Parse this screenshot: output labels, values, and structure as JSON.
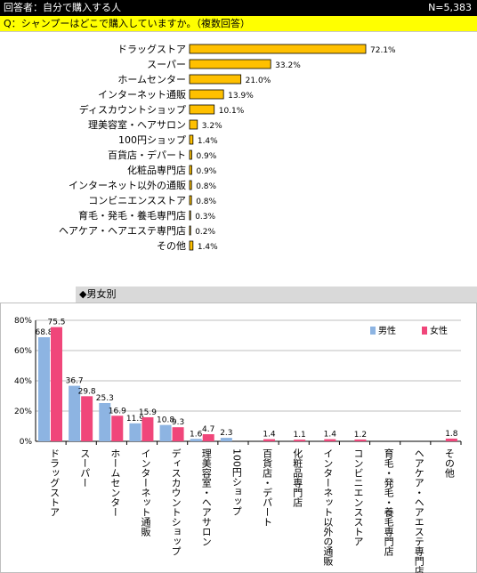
{
  "header": {
    "respondent_label": "回答者：自分で購入する人",
    "sample_size": "N=5,383"
  },
  "question": "Q：シャンプーはどこで購入していますか。（複数回答）",
  "section_title": "◆男女別",
  "colors": {
    "overall_bar": "#ffc000",
    "male": "#8db4e2",
    "female": "#f0467a"
  },
  "chart_data": [
    {
      "type": "bar",
      "orientation": "horizontal",
      "categories": [
        "ドラッグストア",
        "スーパー",
        "ホームセンター",
        "インターネット通販",
        "ディスカウントショップ",
        "理美容室・ヘアサロン",
        "100円ショップ",
        "百貨店・デパート",
        "化粧品専門店",
        "インターネット以外の通販",
        "コンビニエンスストア",
        "育毛・発毛・養毛専門店",
        "ヘアケア・ヘアエステ専門店",
        "その他"
      ],
      "values": [
        72.1,
        33.2,
        21.0,
        13.9,
        10.1,
        3.2,
        1.4,
        0.9,
        0.9,
        0.8,
        0.8,
        0.3,
        0.2,
        1.4
      ],
      "labels": [
        "72.1%",
        "33.2%",
        "21.0%",
        "13.9%",
        "10.1%",
        "3.2%",
        "1.4%",
        "0.9%",
        "0.9%",
        "0.8%",
        "0.8%",
        "0.3%",
        "0.2%",
        "1.4%"
      ],
      "xlim": [
        0,
        100
      ]
    },
    {
      "type": "bar",
      "orientation": "vertical",
      "categories": [
        "ドラッグストア",
        "スーパー",
        "ホームセンター",
        "インターネット通販",
        "ディスカウントショップ",
        "理美容室・ヘアサロン",
        "100円ショップ",
        "百貨店・デパート",
        "化粧品専門店",
        "インターネット以外の通販",
        "コンビニエンスストア",
        "育毛・発毛・養毛専門店",
        "ヘアケア・ヘアエステ専門店",
        "その他"
      ],
      "series": [
        {
          "name": "男性",
          "values": [
            68.8,
            36.7,
            25.3,
            11.9,
            10.8,
            1.6,
            2.3,
            null,
            null,
            null,
            null,
            null,
            null,
            null
          ],
          "labels": [
            "68.8",
            "36.7",
            "25.3",
            "11.9",
            "10.8",
            "1.6",
            "2.3",
            "",
            "",
            "",
            "",
            "",
            "",
            ""
          ]
        },
        {
          "name": "女性",
          "values": [
            75.5,
            29.8,
            16.9,
            15.9,
            9.3,
            4.7,
            null,
            1.4,
            1.1,
            1.4,
            1.2,
            null,
            null,
            1.8
          ],
          "labels": [
            "75.5",
            "29.8",
            "16.9",
            "15.9",
            "9.3",
            "4.7",
            "",
            "1.4",
            "1.1",
            "1.4",
            "1.2",
            "",
            "",
            "1.8"
          ]
        }
      ],
      "yticks": [
        "0%",
        "20%",
        "40%",
        "60%",
        "80%"
      ],
      "ylim": [
        0,
        80
      ],
      "legend": "top-right"
    }
  ]
}
